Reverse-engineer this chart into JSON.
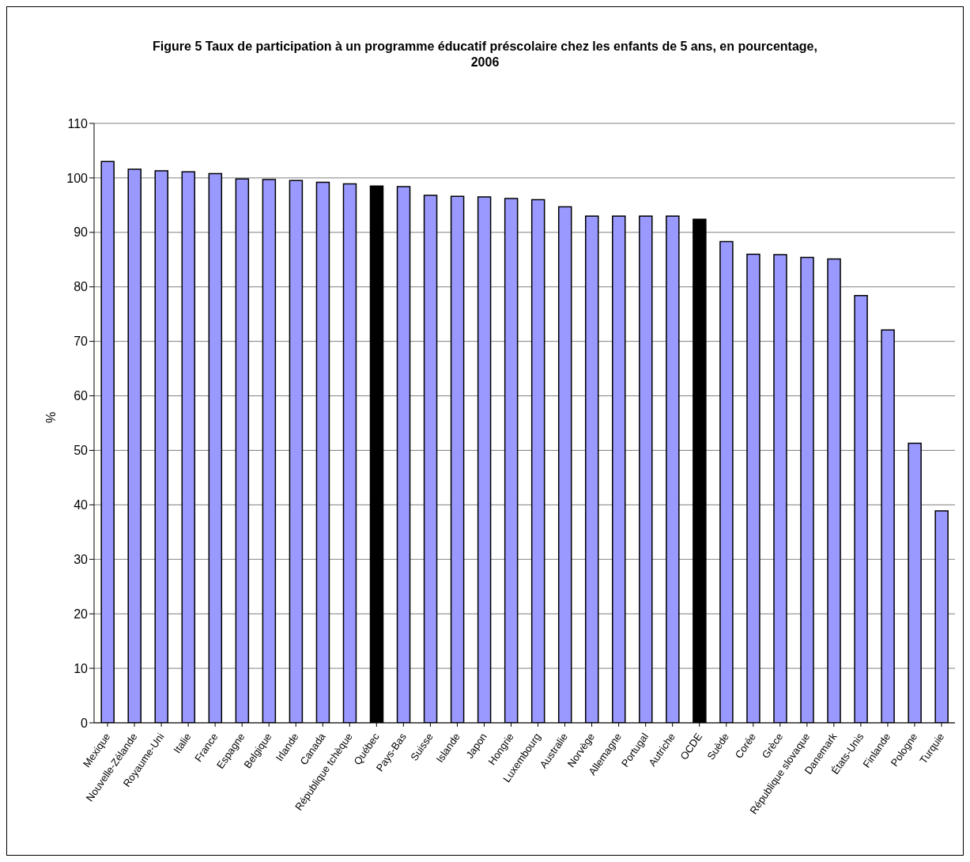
{
  "chart_data": {
    "type": "bar",
    "title": "Figure 5 Taux de participation à un programme éducatif préscolaire chez les enfants de 5 ans, en pourcentage, 2006",
    "ylabel": "%",
    "categories": [
      "Mexique",
      "Nouvelle-Zélande",
      "Royaume-Uni",
      "Italie",
      "France",
      "Espagne",
      "Belgique",
      "Irlande",
      "Canada",
      "République tchèque",
      "Québec",
      "Pays-Bas",
      "Suisse",
      "Islande",
      "Japon",
      "Hongrie",
      "Luxembourg",
      "Australie",
      "Norvège",
      "Allemagne",
      "Portugal",
      "Autriche",
      "OCDE",
      "Suède",
      "Corée",
      "Grèce",
      "République slovaque",
      "Danemark",
      "États-Unis",
      "Finlande",
      "Pologne",
      "Turquie"
    ],
    "values": [
      103.0,
      101.6,
      101.3,
      101.1,
      100.8,
      99.8,
      99.7,
      99.5,
      99.2,
      98.9,
      98.5,
      98.4,
      96.8,
      96.6,
      96.5,
      96.2,
      96.0,
      94.7,
      93.0,
      93.0,
      93.0,
      93.0,
      92.4,
      88.3,
      86.0,
      85.9,
      85.4,
      85.1,
      78.4,
      72.1,
      51.3,
      38.9
    ],
    "colors": [
      "#9999ff",
      "#9999ff",
      "#9999ff",
      "#9999ff",
      "#9999ff",
      "#9999ff",
      "#9999ff",
      "#9999ff",
      "#9999ff",
      "#9999ff",
      "#000000",
      "#9999ff",
      "#9999ff",
      "#9999ff",
      "#9999ff",
      "#9999ff",
      "#9999ff",
      "#9999ff",
      "#9999ff",
      "#9999ff",
      "#9999ff",
      "#9999ff",
      "#000000",
      "#9999ff",
      "#9999ff",
      "#9999ff",
      "#9999ff",
      "#9999ff",
      "#9999ff",
      "#9999ff",
      "#9999ff",
      "#9999ff"
    ],
    "ylim": [
      0,
      110
    ],
    "yticks": [
      0,
      10,
      20,
      30,
      40,
      50,
      60,
      70,
      80,
      90,
      100,
      110
    ],
    "grid": "y",
    "legend": false
  }
}
